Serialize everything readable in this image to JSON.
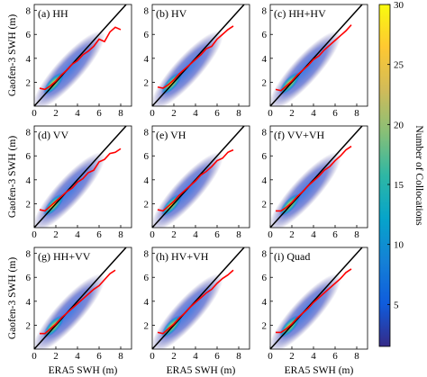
{
  "chart_data": [
    {
      "type": "scatter",
      "title": "(a) HH",
      "ylabel": "Gaofen-3 SWH (m)",
      "xlim": [
        0,
        9
      ],
      "ylim": [
        0,
        8.5
      ],
      "xticks": [
        0,
        2,
        4,
        6,
        8
      ],
      "yticks": [
        2,
        4,
        6,
        8
      ],
      "series": [
        {
          "color": "#ff0000",
          "x": [
            0.5,
            1,
            1.5,
            2,
            2.5,
            3,
            3.5,
            4,
            4.5,
            5,
            5.5,
            6,
            6.5,
            7,
            7.5,
            8
          ],
          "y": [
            1.5,
            1.4,
            1.7,
            2.1,
            2.6,
            3.0,
            3.5,
            3.8,
            4.3,
            4.6,
            5.0,
            5.6,
            5.4,
            6.2,
            6.6,
            6.4
          ]
        }
      ]
    },
    {
      "type": "scatter",
      "title": "(b) HV",
      "xlim": [
        0,
        9
      ],
      "ylim": [
        0,
        8.5
      ],
      "xticks": [
        0,
        2,
        4,
        6,
        8
      ],
      "yticks": [
        2,
        4,
        6,
        8
      ],
      "series": [
        {
          "color": "#ff0000",
          "x": [
            0.5,
            1,
            1.5,
            2,
            2.5,
            3,
            3.5,
            4,
            4.5,
            5,
            5.5,
            6,
            6.5,
            7,
            7.5
          ],
          "y": [
            1.6,
            1.5,
            1.8,
            2.2,
            2.7,
            3.1,
            3.5,
            3.9,
            4.3,
            4.8,
            5.0,
            5.6,
            6.0,
            6.4,
            6.7
          ]
        }
      ]
    },
    {
      "type": "scatter",
      "title": "(c) HH+HV",
      "xlim": [
        0,
        9
      ],
      "ylim": [
        0,
        8.5
      ],
      "xticks": [
        0,
        2,
        4,
        6,
        8
      ],
      "yticks": [
        2,
        4,
        6,
        8
      ],
      "series": [
        {
          "color": "#ff0000",
          "x": [
            0.5,
            1,
            1.5,
            2,
            2.5,
            3,
            3.5,
            4,
            4.5,
            5,
            5.5,
            6,
            6.5,
            7,
            7.5
          ],
          "y": [
            1.4,
            1.3,
            1.7,
            2.1,
            2.6,
            3.0,
            3.4,
            3.9,
            4.2,
            4.7,
            5.1,
            5.5,
            5.9,
            6.3,
            6.8
          ]
        }
      ]
    },
    {
      "type": "scatter",
      "title": "(d) VV",
      "ylabel": "Gaofen-3 SWH (m)",
      "xlim": [
        0,
        9
      ],
      "ylim": [
        0,
        8.5
      ],
      "xticks": [
        0,
        2,
        4,
        6,
        8
      ],
      "yticks": [
        2,
        4,
        6,
        8
      ],
      "series": [
        {
          "color": "#ff0000",
          "x": [
            0.5,
            1,
            1.5,
            2,
            2.5,
            3,
            3.5,
            4,
            4.5,
            5,
            5.5,
            6,
            6.5,
            7,
            7.5,
            8
          ],
          "y": [
            1.5,
            1.4,
            1.8,
            2.2,
            2.6,
            3.0,
            3.3,
            3.8,
            4.1,
            4.6,
            4.8,
            5.5,
            5.7,
            6.2,
            6.3,
            6.6
          ]
        }
      ]
    },
    {
      "type": "scatter",
      "title": "(e) VH",
      "xlim": [
        0,
        9
      ],
      "ylim": [
        0,
        8.5
      ],
      "xticks": [
        0,
        2,
        4,
        6,
        8
      ],
      "yticks": [
        2,
        4,
        6,
        8
      ],
      "series": [
        {
          "color": "#ff0000",
          "x": [
            0.5,
            1,
            1.5,
            2,
            2.5,
            3,
            3.5,
            4,
            4.5,
            5,
            5.5,
            6,
            6.5,
            7,
            7.5
          ],
          "y": [
            1.5,
            1.4,
            1.8,
            2.2,
            2.7,
            3.1,
            3.5,
            3.9,
            4.4,
            4.7,
            5.1,
            5.6,
            5.8,
            6.3,
            6.5
          ]
        }
      ]
    },
    {
      "type": "scatter",
      "title": "(f) VV+VH",
      "xlim": [
        0,
        9
      ],
      "ylim": [
        0,
        8.5
      ],
      "xticks": [
        0,
        2,
        4,
        6,
        8
      ],
      "yticks": [
        2,
        4,
        6,
        8
      ],
      "series": [
        {
          "color": "#ff0000",
          "x": [
            0.5,
            1,
            1.5,
            2,
            2.5,
            3,
            3.5,
            4,
            4.5,
            5,
            5.5,
            6,
            6.5,
            7,
            7.5
          ],
          "y": [
            1.4,
            1.4,
            1.7,
            2.1,
            2.6,
            3.0,
            3.5,
            3.9,
            4.3,
            4.8,
            5.1,
            5.6,
            6.0,
            6.5,
            6.8
          ]
        }
      ]
    },
    {
      "type": "scatter",
      "title": "(g) HH+VV",
      "ylabel": "Gaofen-3 SWH (m)",
      "xlabel": "ERA5 SWH (m)",
      "xlim": [
        0,
        9
      ],
      "ylim": [
        0,
        8.5
      ],
      "xticks": [
        0,
        2,
        4,
        6,
        8
      ],
      "yticks": [
        2,
        4,
        6,
        8
      ],
      "series": [
        {
          "color": "#ff0000",
          "x": [
            0.5,
            1,
            1.5,
            2,
            2.5,
            3,
            3.5,
            4,
            4.5,
            5,
            5.5,
            6,
            6.5,
            7,
            7.5
          ],
          "y": [
            1.3,
            1.3,
            1.7,
            2.1,
            2.6,
            3.0,
            3.4,
            3.8,
            4.2,
            4.6,
            5.0,
            5.3,
            5.8,
            6.3,
            6.6
          ]
        }
      ]
    },
    {
      "type": "scatter",
      "title": "(h) HV+VH",
      "xlabel": "ERA5 SWH (m)",
      "xlim": [
        0,
        9
      ],
      "ylim": [
        0,
        8.5
      ],
      "xticks": [
        0,
        2,
        4,
        6,
        8
      ],
      "yticks": [
        2,
        4,
        6,
        8
      ],
      "series": [
        {
          "color": "#ff0000",
          "x": [
            0.5,
            1,
            1.5,
            2,
            2.5,
            3,
            3.5,
            4,
            4.5,
            5,
            5.5,
            6,
            6.5,
            7,
            7.5
          ],
          "y": [
            1.4,
            1.3,
            1.7,
            2.1,
            2.6,
            3.0,
            3.5,
            3.9,
            4.3,
            4.7,
            5.0,
            5.5,
            5.9,
            6.2,
            6.6
          ]
        }
      ]
    },
    {
      "type": "scatter",
      "title": "(i) Quad",
      "xlabel": "ERA5 SWH (m)",
      "xlim": [
        0,
        9
      ],
      "ylim": [
        0,
        8.5
      ],
      "xticks": [
        0,
        2,
        4,
        6,
        8
      ],
      "yticks": [
        2,
        4,
        6,
        8
      ],
      "series": [
        {
          "color": "#ff0000",
          "x": [
            0.5,
            1,
            1.5,
            2,
            2.5,
            3,
            3.5,
            4,
            4.5,
            5,
            5.5,
            6,
            6.5,
            7,
            7.5
          ],
          "y": [
            1.4,
            1.4,
            1.7,
            2.1,
            2.6,
            3.0,
            3.4,
            3.9,
            4.3,
            4.7,
            5.1,
            5.5,
            5.9,
            6.4,
            6.7
          ]
        }
      ]
    }
  ],
  "colorbar": {
    "label": "Number of Collocations",
    "lim": [
      1.5,
      30
    ],
    "ticks": [
      5,
      10,
      15,
      20,
      25,
      30
    ],
    "colors": [
      "#352a87",
      "#0f5cdd",
      "#1481d6",
      "#06a4ca",
      "#2eb7a4",
      "#87bf77",
      "#d1bb59",
      "#fec832",
      "#f9fb0e"
    ]
  }
}
